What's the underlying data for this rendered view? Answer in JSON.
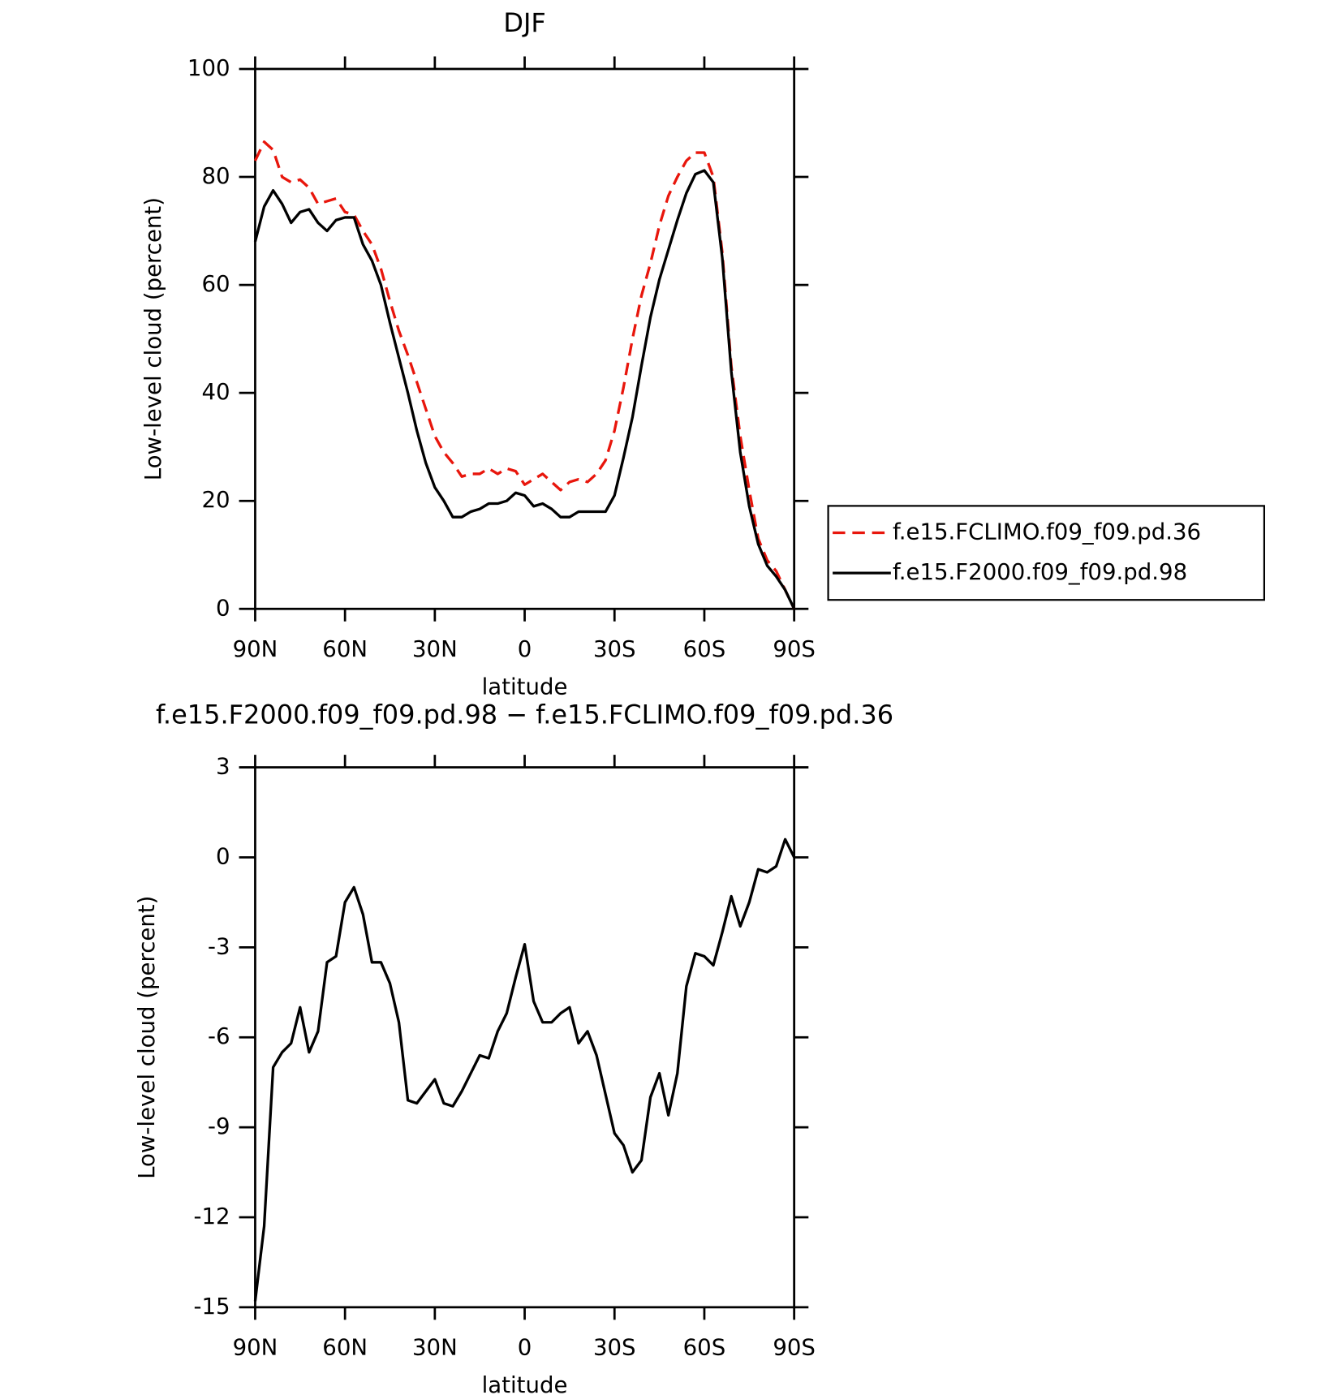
{
  "chart_data": [
    {
      "type": "line",
      "title": "DJF",
      "xlabel": "latitude",
      "ylabel": "Low-level cloud (percent)",
      "x": [
        90,
        87,
        84,
        81,
        78,
        75,
        72,
        69,
        66,
        63,
        60,
        57,
        54,
        51,
        48,
        45,
        42,
        39,
        36,
        33,
        30,
        27,
        24,
        21,
        18,
        15,
        12,
        9,
        6,
        3,
        0,
        -3,
        -6,
        -9,
        -12,
        -15,
        -18,
        -21,
        -24,
        -27,
        -30,
        -33,
        -36,
        -39,
        -42,
        -45,
        -48,
        -51,
        -54,
        -57,
        -60,
        -63,
        -66,
        -69,
        -72,
        -75,
        -78,
        -81,
        -84,
        -87,
        -90
      ],
      "xlim": [
        90,
        -90
      ],
      "xticks": [
        {
          "value": 90,
          "label": "90N"
        },
        {
          "value": 60,
          "label": "60N"
        },
        {
          "value": 30,
          "label": "30N"
        },
        0,
        {
          "value": -30,
          "label": "30S"
        },
        {
          "value": -60,
          "label": "60S"
        },
        {
          "value": -90,
          "label": "90S"
        }
      ],
      "ylim": [
        0,
        100
      ],
      "yticks": [
        0,
        20,
        40,
        60,
        80,
        100
      ],
      "grid": false,
      "legend": "right",
      "series": [
        {
          "name": "f.e15.FCLIMO.f09_f09.pd.36",
          "color": "#e8160c",
          "linestyle": "dashed",
          "values": [
            83,
            86.5,
            85,
            80,
            79,
            79.5,
            78,
            75,
            75.5,
            76,
            73.5,
            73,
            70,
            67.5,
            63,
            57,
            51.5,
            47,
            42,
            37,
            32,
            29,
            27,
            24.5,
            25,
            25,
            26,
            25,
            26,
            25.5,
            23,
            24,
            25,
            23.5,
            22,
            23.5,
            24,
            23.5,
            25,
            27.5,
            33,
            41,
            50,
            58,
            64,
            71,
            76.5,
            80,
            83,
            84.5,
            84.5,
            80,
            66,
            45,
            32,
            22,
            13,
            9,
            7,
            3.5,
            0
          ]
        },
        {
          "name": "f.e15.F2000.f09_f09.pd.98",
          "color": "#000000",
          "linestyle": "solid",
          "values": [
            68,
            74.5,
            77.5,
            75,
            71.5,
            73.5,
            74,
            71.5,
            70,
            72,
            72.5,
            72.5,
            67.5,
            64.5,
            60,
            53,
            46.5,
            40,
            33,
            27,
            22.5,
            20,
            17,
            17,
            18,
            18.5,
            19.5,
            19.5,
            20,
            21.5,
            21,
            19,
            19.5,
            18.5,
            17,
            17,
            18,
            18,
            18,
            18,
            21,
            28,
            35.5,
            45,
            54,
            61,
            66.5,
            72,
            77,
            80.5,
            81.2,
            79,
            65,
            44,
            29,
            19,
            12,
            8,
            6,
            3.5,
            0
          ]
        }
      ]
    },
    {
      "type": "line",
      "title": "f.e15.F2000.f09_f09.pd.98 − f.e15.FCLIMO.f09_f09.pd.36",
      "xlabel": "latitude",
      "ylabel": "Low-level cloud (percent)",
      "x": [
        90,
        87,
        84,
        81,
        78,
        75,
        72,
        69,
        66,
        63,
        60,
        57,
        54,
        51,
        48,
        45,
        42,
        39,
        36,
        33,
        30,
        27,
        24,
        21,
        18,
        15,
        12,
        9,
        6,
        3,
        0,
        -3,
        -6,
        -9,
        -12,
        -15,
        -18,
        -21,
        -24,
        -27,
        -30,
        -33,
        -36,
        -39,
        -42,
        -45,
        -48,
        -51,
        -54,
        -57,
        -60,
        -63,
        -66,
        -69,
        -72,
        -75,
        -78,
        -81,
        -84,
        -87,
        -90
      ],
      "xlim": [
        90,
        -90
      ],
      "xticks": [
        {
          "value": 90,
          "label": "90N"
        },
        {
          "value": 60,
          "label": "60N"
        },
        {
          "value": 30,
          "label": "30N"
        },
        0,
        {
          "value": -30,
          "label": "30S"
        },
        {
          "value": -60,
          "label": "60S"
        },
        {
          "value": -90,
          "label": "90S"
        }
      ],
      "ylim": [
        -15,
        3
      ],
      "yticks": [
        -15,
        -12,
        -9,
        -6,
        -3,
        0,
        3
      ],
      "grid": false,
      "series": [
        {
          "color": "#000000",
          "linestyle": "solid",
          "values": [
            -14.8,
            -12.3,
            -7,
            -6.5,
            -6.2,
            -5,
            -6.5,
            -5.8,
            -3.5,
            -3.3,
            -1.5,
            -1,
            -1.9,
            -3.5,
            -3.5,
            -4.2,
            -5.5,
            -8.1,
            -8.2,
            -7.8,
            -7.4,
            -8.2,
            -8.3,
            -7.8,
            -7.2,
            -6.6,
            -6.7,
            -5.8,
            -5.2,
            -4,
            -2.9,
            -4.8,
            -5.5,
            -5.5,
            -5.2,
            -5,
            -6.2,
            -5.8,
            -6.6,
            -7.9,
            -9.2,
            -9.6,
            -10.5,
            -10.1,
            -8,
            -7.2,
            -8.6,
            -7.2,
            -4.3,
            -3.2,
            -3.3,
            -3.6,
            -2.5,
            -1.3,
            -2.3,
            -1.5,
            -0.4,
            -0.5,
            -0.3,
            0.6,
            0
          ]
        }
      ]
    }
  ]
}
